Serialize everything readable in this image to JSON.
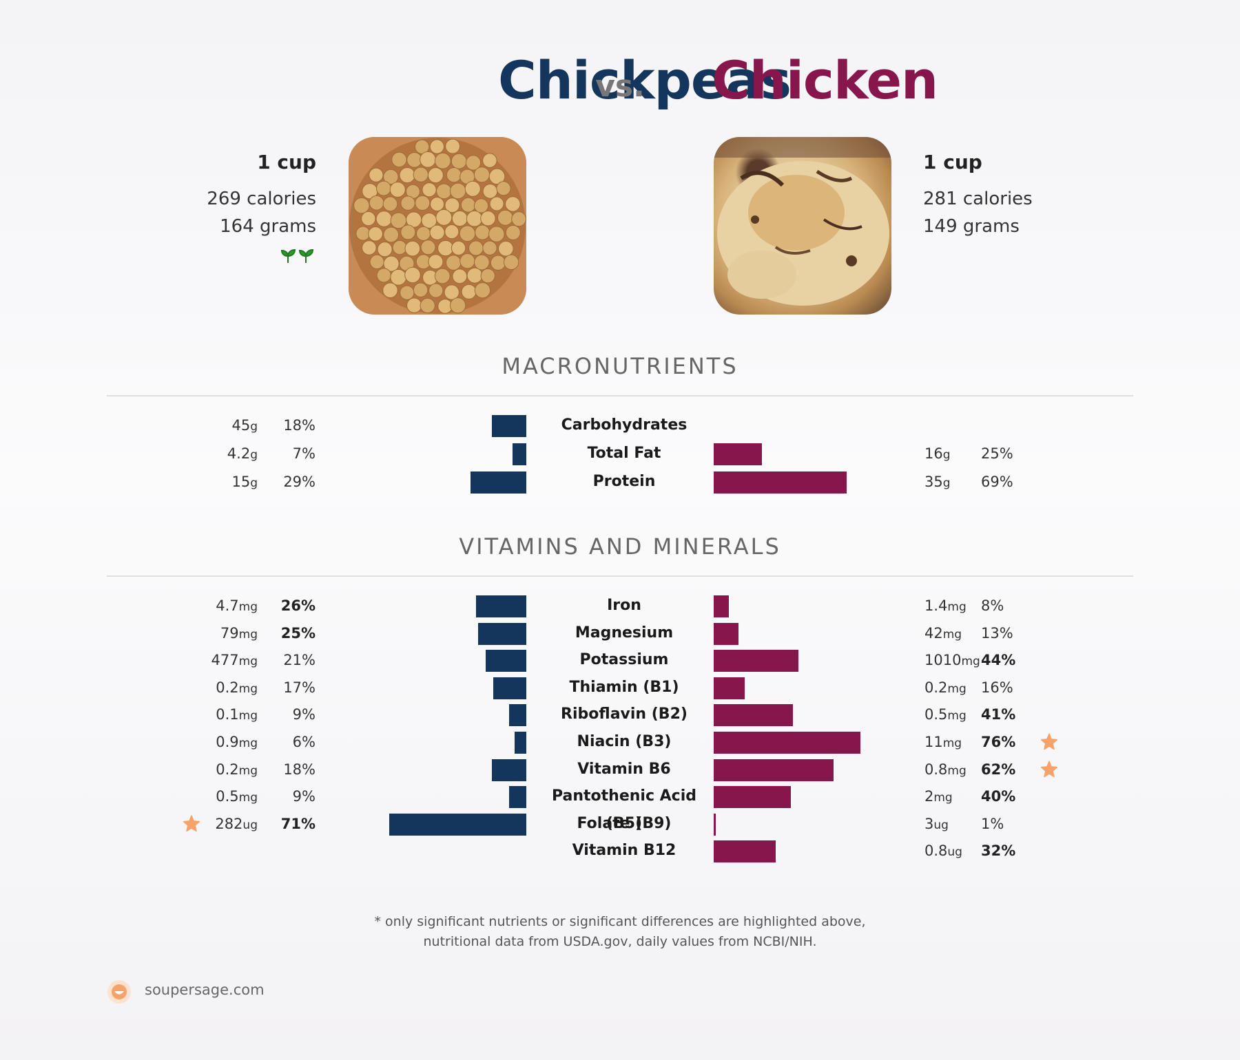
{
  "header": {
    "left_food": "Chickpeas",
    "vs": "vs.",
    "right_food": "Chicken"
  },
  "left_info": {
    "serving": "1 cup",
    "calories": "269 calories",
    "grams": "164 grams",
    "badge_icon": "seedling-icon"
  },
  "right_info": {
    "serving": "1 cup",
    "calories": "281 calories",
    "grams": "149 grams"
  },
  "sections": {
    "macros": "MACRONUTRIENTS",
    "vitamins": "VITAMINS AND MINERALS"
  },
  "colors": {
    "left": "#14355c",
    "right": "#86164b",
    "star": "#f5a36b"
  },
  "chart_data": [
    {
      "type": "bar",
      "orientation": "horizontal-butterfly",
      "section": "MACRONUTRIENTS",
      "categories": [
        "Carbohydrates",
        "Total Fat",
        "Protein"
      ],
      "series": [
        {
          "name": "Chickpeas",
          "amounts": [
            "45",
            "4.2",
            "15"
          ],
          "units": [
            "g",
            "g",
            "g"
          ],
          "values": [
            18,
            7,
            29
          ],
          "pct_labels": [
            "18%",
            "7%",
            "29%"
          ],
          "bold": [
            false,
            false,
            false
          ],
          "star": [
            false,
            false,
            false
          ]
        },
        {
          "name": "Chicken",
          "amounts": [
            "",
            "16",
            "35"
          ],
          "units": [
            "",
            "g",
            "g"
          ],
          "values": [
            0,
            25,
            69
          ],
          "pct_labels": [
            "",
            "25%",
            "69%"
          ],
          "bold": [
            false,
            false,
            false
          ],
          "star": [
            false,
            false,
            false
          ]
        }
      ]
    },
    {
      "type": "bar",
      "orientation": "horizontal-butterfly",
      "section": "VITAMINS AND MINERALS",
      "categories": [
        "Iron",
        "Magnesium",
        "Potassium",
        "Thiamin (B1)",
        "Riboflavin (B2)",
        "Niacin (B3)",
        "Vitamin B6",
        "Pantothenic Acid (B5)",
        "Folate (B9)",
        "Vitamin B12"
      ],
      "series": [
        {
          "name": "Chickpeas",
          "amounts": [
            "4.7",
            "79",
            "477",
            "0.2",
            "0.1",
            "0.9",
            "0.2",
            "0.5",
            "282",
            ""
          ],
          "units": [
            "mg",
            "mg",
            "mg",
            "mg",
            "mg",
            "mg",
            "mg",
            "mg",
            "ug",
            ""
          ],
          "values": [
            26,
            25,
            21,
            17,
            9,
            6,
            18,
            9,
            71,
            0
          ],
          "pct_labels": [
            "26%",
            "25%",
            "21%",
            "17%",
            "9%",
            "6%",
            "18%",
            "9%",
            "71%",
            ""
          ],
          "bold": [
            true,
            true,
            false,
            false,
            false,
            false,
            false,
            false,
            true,
            false
          ],
          "star": [
            false,
            false,
            false,
            false,
            false,
            false,
            false,
            false,
            true,
            false
          ]
        },
        {
          "name": "Chicken",
          "amounts": [
            "1.4",
            "42",
            "1010",
            "0.2",
            "0.5",
            "11",
            "0.8",
            "2",
            "3",
            "0.8"
          ],
          "units": [
            "mg",
            "mg",
            "mg",
            "mg",
            "mg",
            "mg",
            "mg",
            "mg",
            "ug",
            "ug"
          ],
          "values": [
            8,
            13,
            44,
            16,
            41,
            76,
            62,
            40,
            1,
            32
          ],
          "pct_labels": [
            "8%",
            "13%",
            "44%",
            "16%",
            "41%",
            "76%",
            "62%",
            "40%",
            "1%",
            "32%"
          ],
          "bold": [
            false,
            false,
            true,
            false,
            true,
            true,
            true,
            true,
            false,
            true
          ],
          "star": [
            false,
            false,
            false,
            false,
            false,
            true,
            true,
            false,
            false,
            false
          ]
        }
      ]
    }
  ],
  "footer": {
    "note_line1": "* only significant nutrients or significant differences are highlighted above,",
    "note_line2": "nutritional data from USDA.gov, daily values from NCBI/NIH.",
    "brand": "soupersage.com",
    "brand_icon": "soupersage-logo-icon"
  }
}
